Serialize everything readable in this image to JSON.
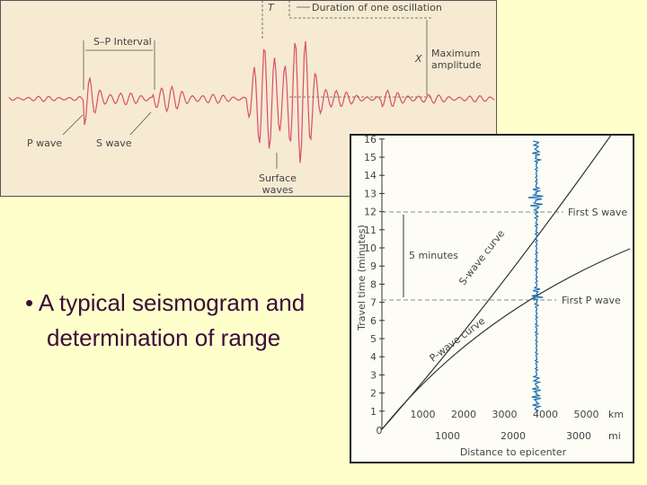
{
  "seismogram": {
    "t_label": "T",
    "duration_label": "Duration of one oscillation",
    "sp_interval": "S–P Interval",
    "x_label": "X",
    "max_amplitude": [
      "Maximum",
      "amplitude"
    ],
    "p_wave": "P wave",
    "s_wave": "S wave",
    "surface_waves": [
      "Surface",
      "waves"
    ]
  },
  "graph": {
    "y_label": "Travel time (minutes)",
    "y_ticks": [
      1,
      2,
      3,
      4,
      5,
      6,
      7,
      8,
      9,
      10,
      11,
      12,
      13,
      14,
      15,
      16
    ],
    "origin": "0",
    "km_ticks": [
      1000,
      2000,
      3000,
      4000,
      5000
    ],
    "km_unit": "km",
    "mi_ticks": [
      1000,
      2000,
      3000
    ],
    "mi_unit": "mi",
    "x_label": "Distance to epicenter",
    "s_curve": "S-wave curve",
    "p_curve": "P-wave curve",
    "first_s": "First S wave",
    "first_p": "First P wave",
    "interval": "5 minutes"
  },
  "bullet": "A typical seismogram and determination of range"
}
